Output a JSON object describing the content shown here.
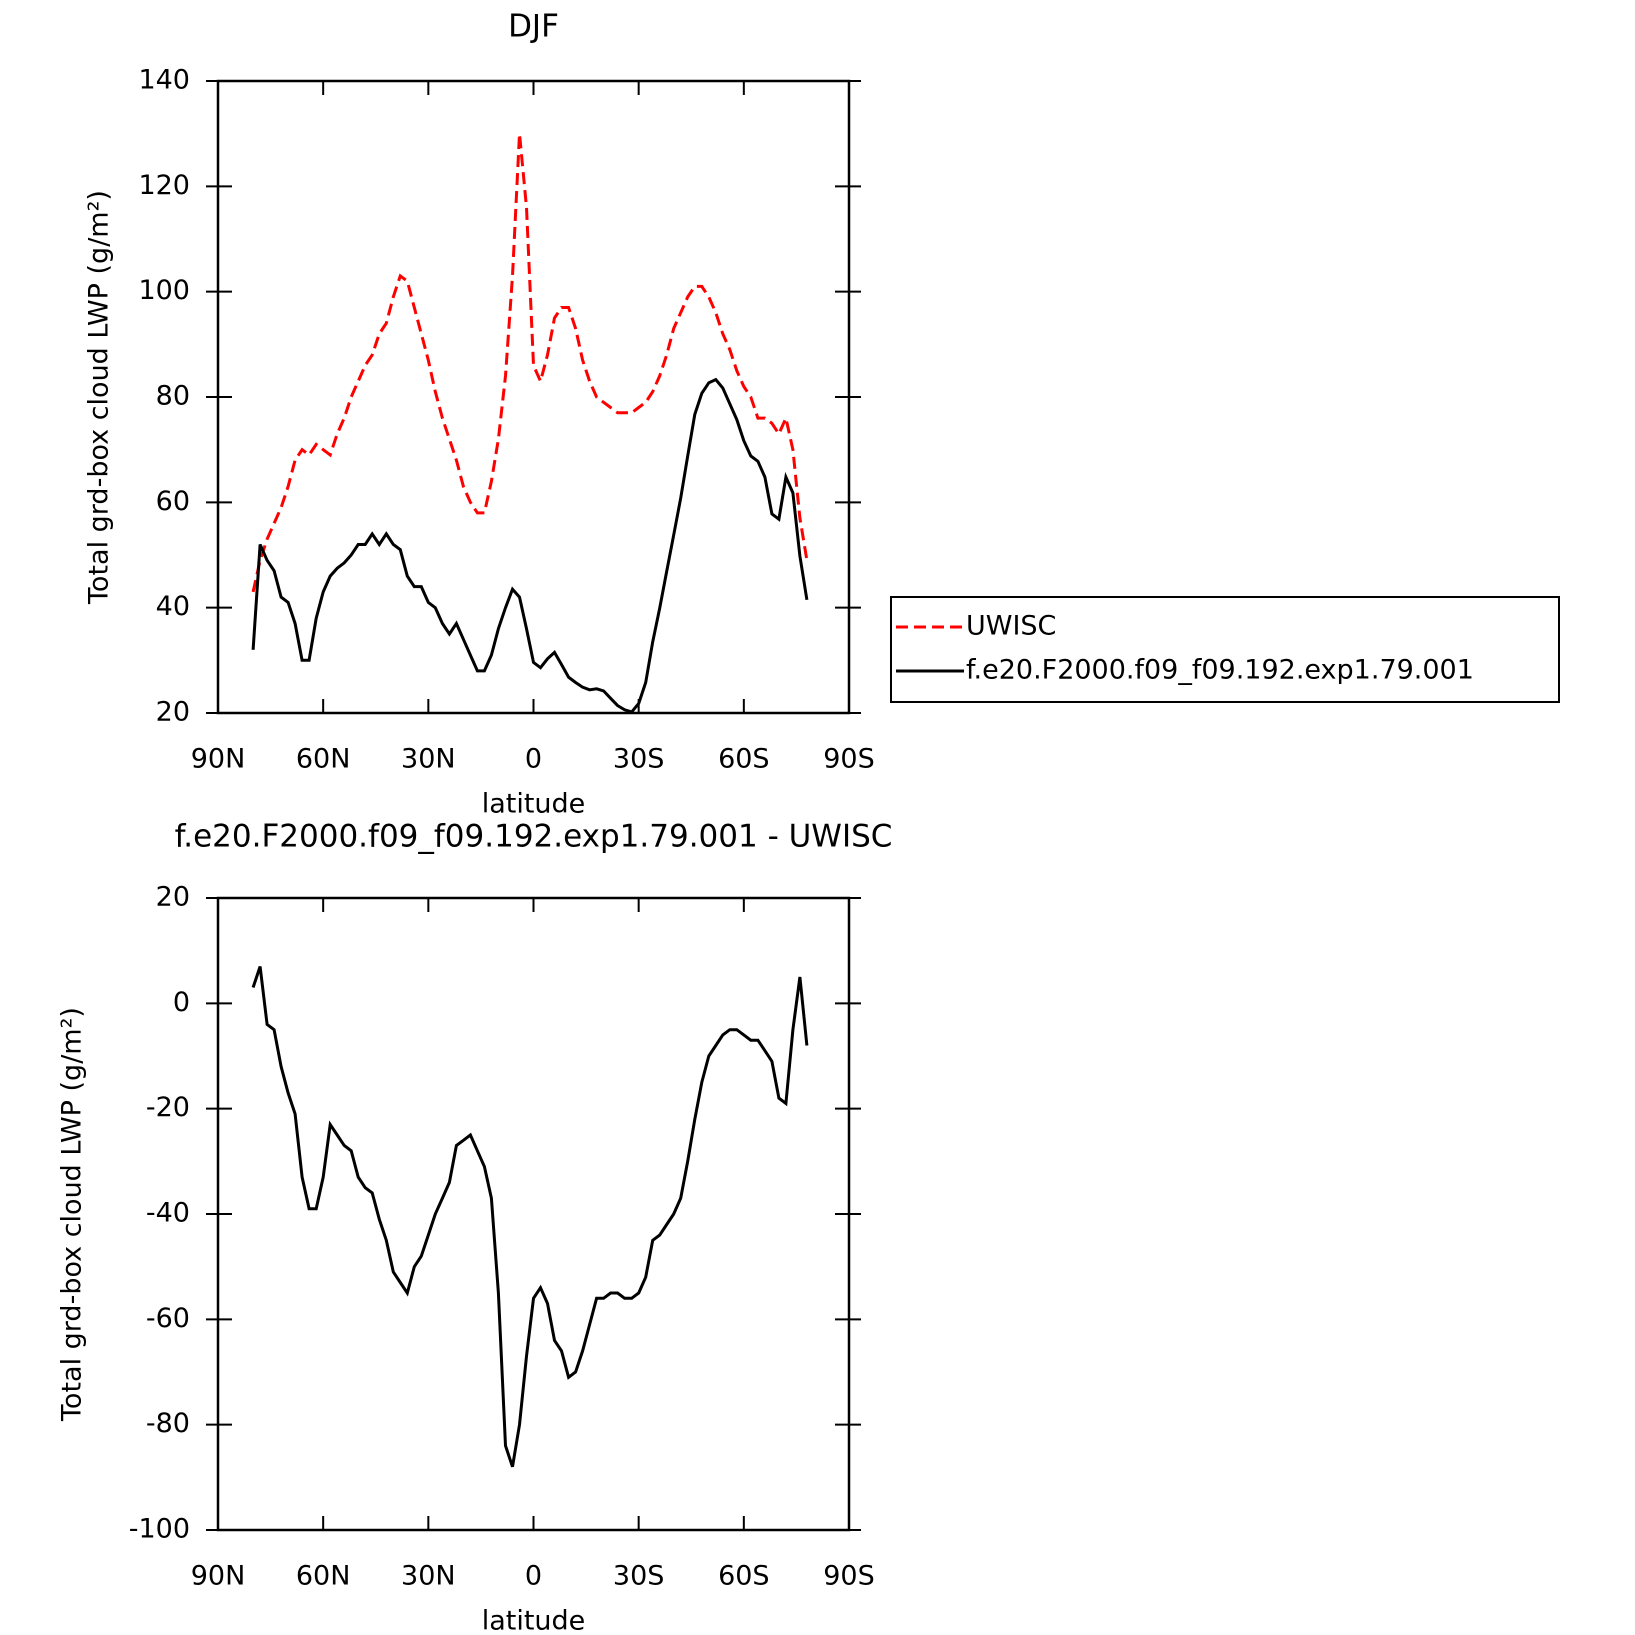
{
  "chart_data": [
    {
      "type": "line",
      "title": "DJF",
      "xlabel": "latitude",
      "ylabel": "Total grd-box cloud LWP (g/m²)",
      "xlim": [
        90,
        -90
      ],
      "ylim": [
        20,
        140
      ],
      "xticks": [
        {
          "value": 90,
          "label": "90N"
        },
        {
          "value": 60,
          "label": "60N"
        },
        {
          "value": 30,
          "label": "30N"
        },
        0,
        {
          "value": -30,
          "label": "30S"
        },
        {
          "value": -60,
          "label": "60S"
        },
        {
          "value": -90,
          "label": "90S"
        }
      ],
      "yticks": [
        20,
        40,
        60,
        80,
        100,
        120,
        140
      ],
      "legend": "right",
      "x": [
        80,
        78,
        76,
        74,
        72,
        70,
        68,
        66,
        64,
        62,
        60,
        58,
        56,
        54,
        52,
        50,
        48,
        46,
        44,
        42,
        40,
        38,
        36,
        34,
        32,
        30,
        28,
        26,
        24,
        22,
        20,
        18,
        16,
        14,
        12,
        10,
        8,
        6,
        4,
        2,
        0,
        -2,
        -4,
        -6,
        -8,
        -10,
        -12,
        -14,
        -16,
        -18,
        -20,
        -22,
        -24,
        -26,
        -28,
        -30,
        -32,
        -34,
        -36,
        -38,
        -40,
        -42,
        -44,
        -46,
        -48,
        -50,
        -52,
        -54,
        -56,
        -58,
        -60,
        -62,
        -64,
        -66,
        -68,
        -70,
        -72,
        -74,
        -76,
        -78
      ],
      "series": [
        {
          "name": "UWISC",
          "color": "#ff0000",
          "dash": true,
          "values": [
            43,
            49,
            53,
            56,
            59,
            63,
            68,
            70,
            69,
            71,
            70,
            69,
            73,
            76,
            80,
            83,
            86,
            88,
            92,
            94,
            99,
            103,
            102,
            97,
            92,
            87,
            81,
            76,
            72,
            68,
            63,
            60,
            58,
            58,
            64,
            72,
            84,
            103,
            130,
            116,
            86,
            83,
            88,
            95,
            97,
            97,
            93,
            87,
            83,
            80,
            79,
            78,
            77,
            77,
            77,
            78,
            79,
            81,
            84,
            88,
            93,
            96,
            99,
            101,
            101,
            99,
            96,
            92,
            89,
            85,
            82,
            80,
            76,
            76,
            75,
            73,
            76,
            70,
            57,
            49
          ]
        },
        {
          "name": "f.e20.F2000.f09_f09.192.exp1.79.001",
          "color": "#000000",
          "dash": false,
          "values": [
            32,
            52,
            49,
            47,
            42,
            41,
            37,
            30,
            30,
            38,
            43,
            46,
            47.5,
            48.5,
            50,
            52,
            52,
            54,
            52,
            54,
            52,
            51,
            46,
            44,
            44,
            41,
            40,
            37,
            35,
            37,
            34,
            31,
            28,
            28,
            31,
            36,
            40,
            43.5,
            42,
            36,
            29.6,
            28.6,
            30.3,
            31.5,
            29.2,
            26.8,
            25.8,
            24.9,
            24.4,
            24.6,
            24.2,
            22.8,
            21.4,
            20.6,
            20.2,
            21.8,
            25.8,
            33.5,
            39.9,
            46.9,
            53.8,
            60.8,
            68.8,
            76.7,
            80.7,
            82.7,
            83.3,
            81.7,
            78.7,
            75.7,
            71.7,
            68.8,
            67.8,
            64.8,
            57.8,
            56.8,
            64.8,
            61.8,
            49.8,
            41.5
          ]
        }
      ]
    },
    {
      "type": "line",
      "title": "f.e20.F2000.f09_f09.192.exp1.79.001 - UWISC",
      "xlabel": "latitude",
      "ylabel": "Total grd-box cloud LWP (g/m²)",
      "xlim": [
        90,
        -90
      ],
      "ylim": [
        -100,
        20
      ],
      "xticks": [
        {
          "value": 90,
          "label": "90N"
        },
        {
          "value": 60,
          "label": "60N"
        },
        {
          "value": 30,
          "label": "30N"
        },
        0,
        {
          "value": -30,
          "label": "30S"
        },
        {
          "value": -60,
          "label": "60S"
        },
        {
          "value": -90,
          "label": "90S"
        }
      ],
      "yticks": [
        -100,
        -80,
        -60,
        -40,
        -20,
        0,
        20
      ],
      "x": [
        80,
        78,
        76,
        74,
        72,
        70,
        68,
        66,
        64,
        62,
        60,
        58,
        56,
        54,
        52,
        50,
        48,
        46,
        44,
        42,
        40,
        38,
        36,
        34,
        32,
        30,
        28,
        26,
        24,
        22,
        20,
        18,
        16,
        14,
        12,
        10,
        8,
        6,
        4,
        2,
        0,
        -2,
        -4,
        -6,
        -8,
        -10,
        -12,
        -14,
        -16,
        -18,
        -20,
        -22,
        -24,
        -26,
        -28,
        -30,
        -32,
        -34,
        -36,
        -38,
        -40,
        -42,
        -44,
        -46,
        -48,
        -50,
        -52,
        -54,
        -56,
        -58,
        -60,
        -62,
        -64,
        -66,
        -68,
        -70,
        -72,
        -74,
        -76,
        -78
      ],
      "values": [
        3,
        7,
        -4,
        -5,
        -12,
        -17,
        -21,
        -33,
        -39,
        -39,
        -33,
        -23,
        -25,
        -27,
        -28,
        -33,
        -35,
        -36,
        -41,
        -45,
        -51,
        -53,
        -55,
        -50,
        -48,
        -44,
        -40,
        -37,
        -34,
        -27,
        -26,
        -25,
        -28,
        -31,
        -37,
        -55,
        -84,
        -88,
        -80,
        -67,
        -56,
        -54,
        -57,
        -64,
        -66,
        -71,
        -70,
        -66,
        -61,
        -56,
        -56,
        -55,
        -55,
        -56,
        -56,
        -55,
        -52,
        -45,
        -44,
        -42,
        -40,
        -37,
        -30,
        -22,
        -15,
        -10,
        -8,
        -6,
        -5,
        -5,
        -6,
        -7,
        -7,
        -9,
        -11,
        -18,
        -19,
        -5,
        5,
        -8
      ],
      "color": "#000000"
    }
  ]
}
